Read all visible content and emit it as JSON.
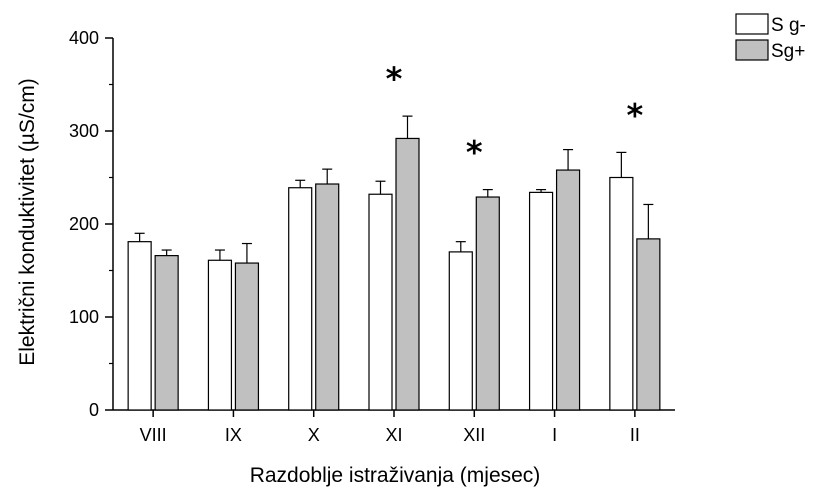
{
  "chart_data": {
    "type": "bar",
    "categories": [
      "VIII",
      "IX",
      "X",
      "XI",
      "XII",
      "I",
      "II"
    ],
    "series": [
      {
        "name": "S g-",
        "color": "#ffffff",
        "values": [
          181,
          161,
          239,
          232,
          170,
          234,
          250
        ],
        "errors": [
          9,
          11,
          8,
          14,
          11,
          3,
          27
        ]
      },
      {
        "name": "Sg+",
        "color": "#c0c0c0",
        "values": [
          166,
          158,
          243,
          292,
          229,
          258,
          184
        ],
        "errors": [
          6,
          21,
          16,
          24,
          8,
          22,
          37
        ]
      }
    ],
    "significance_marks": [
      {
        "category": "XI",
        "label": "*"
      },
      {
        "category": "XII",
        "label": "*"
      },
      {
        "category": "II",
        "label": "*"
      }
    ],
    "ylabel": "Električni konduktivitet (µS/cm)",
    "xlabel": "Razdoblje istraživanja (mjesec)",
    "ylim": [
      0,
      400
    ],
    "yticks": [
      0,
      100,
      200,
      300,
      400
    ],
    "grid": false,
    "legend_position": "top-right"
  }
}
